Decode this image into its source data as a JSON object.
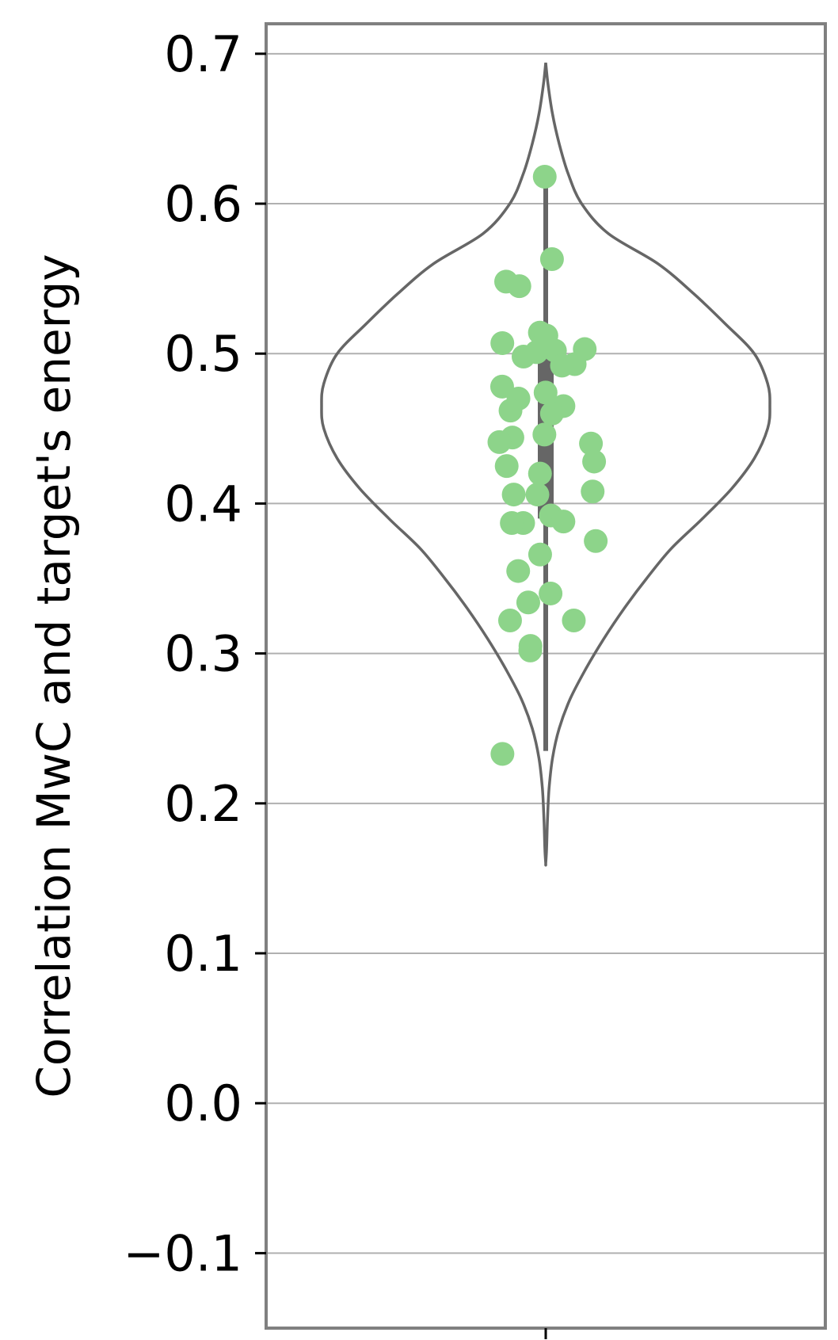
{
  "chart_data": {
    "type": "violin",
    "ylabel": "Correlation MwC and target's energy",
    "xlabel": "",
    "ylim": [
      -0.15,
      0.72
    ],
    "yticks": [
      -0.1,
      0.0,
      0.1,
      0.2,
      0.3,
      0.4,
      0.5,
      0.6,
      0.7
    ],
    "ytick_labels": [
      "−0.1",
      "0.0",
      "0.1",
      "0.2",
      "0.3",
      "0.4",
      "0.5",
      "0.6",
      "0.7"
    ],
    "grid": "horizontal",
    "violin": {
      "kde_min": 0.16,
      "kde_max": 0.694,
      "median": 0.44,
      "q1": 0.39,
      "q3": 0.5,
      "whisker_low": 0.235,
      "whisker_high": 0.62,
      "profile": [
        [
          0.694,
          0.0
        ],
        [
          0.68,
          0.01
        ],
        [
          0.66,
          0.03
        ],
        [
          0.64,
          0.06
        ],
        [
          0.62,
          0.1
        ],
        [
          0.6,
          0.16
        ],
        [
          0.58,
          0.28
        ],
        [
          0.56,
          0.5
        ],
        [
          0.54,
          0.66
        ],
        [
          0.52,
          0.8
        ],
        [
          0.5,
          0.93
        ],
        [
          0.48,
          0.99
        ],
        [
          0.465,
          1.0
        ],
        [
          0.45,
          0.99
        ],
        [
          0.43,
          0.93
        ],
        [
          0.41,
          0.83
        ],
        [
          0.39,
          0.7
        ],
        [
          0.37,
          0.56
        ],
        [
          0.35,
          0.45
        ],
        [
          0.33,
          0.35
        ],
        [
          0.31,
          0.26
        ],
        [
          0.29,
          0.18
        ],
        [
          0.27,
          0.11
        ],
        [
          0.25,
          0.06
        ],
        [
          0.23,
          0.03
        ],
        [
          0.21,
          0.015
        ],
        [
          0.19,
          0.008
        ],
        [
          0.17,
          0.004
        ],
        [
          0.16,
          0.0
        ]
      ]
    },
    "points": [
      0.618,
      0.563,
      0.548,
      0.545,
      0.514,
      0.512,
      0.507,
      0.503,
      0.502,
      0.501,
      0.498,
      0.493,
      0.492,
      0.478,
      0.474,
      0.47,
      0.465,
      0.462,
      0.46,
      0.446,
      0.444,
      0.441,
      0.44,
      0.428,
      0.425,
      0.42,
      0.408,
      0.406,
      0.406,
      0.392,
      0.388,
      0.387,
      0.387,
      0.375,
      0.366,
      0.355,
      0.34,
      0.334,
      0.322,
      0.322,
      0.305,
      0.302,
      0.233
    ],
    "colors": {
      "points": "#8dd48a",
      "violin_edge": "#666666",
      "box": "#666666",
      "grid": "#b0b0b0",
      "frame": "#808080"
    }
  }
}
